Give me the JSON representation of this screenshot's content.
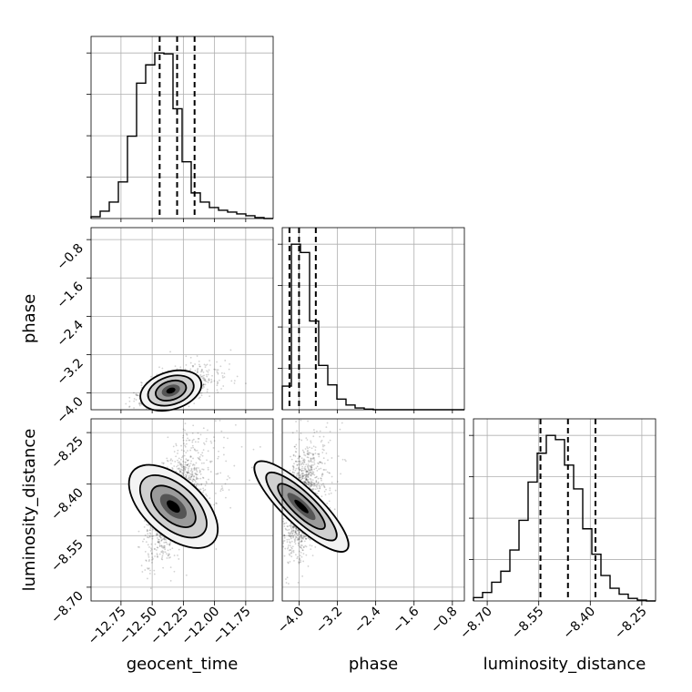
{
  "chart_data": {
    "type": "corner",
    "parameters": [
      "geocent_time",
      "phase",
      "luminosity_distance"
    ],
    "axis_labels": {
      "geocent_time": "geocent_time",
      "phase": "phase",
      "luminosity_distance": "luminosity_distance"
    },
    "ticks": {
      "geocent_time": [
        "−12.75",
        "−12.50",
        "−12.25",
        "−12.00",
        "−11.75"
      ],
      "phase": [
        "−4.0",
        "−3.2",
        "−2.4",
        "−1.6",
        "−0.8"
      ],
      "phase_y": [
        "−0.8",
        "−1.6",
        "−2.4",
        "−3.2",
        "−4.0"
      ],
      "luminosity_distance": [
        "−8.70",
        "−8.55",
        "−8.40",
        "−8.25"
      ],
      "luminosity_distance_y": [
        "−8.25",
        "−8.40",
        "−8.55",
        "−8.70"
      ]
    },
    "tick_values": {
      "geocent_time": [
        -12.75,
        -12.5,
        -12.25,
        -12.0,
        -11.75
      ],
      "phase": [
        -4.0,
        -3.2,
        -2.4,
        -1.6,
        -0.8
      ],
      "luminosity_distance": [
        -8.7,
        -8.55,
        -8.4,
        -8.25
      ]
    },
    "ranges": {
      "geocent_time": [
        -12.99,
        -11.53
      ],
      "phase": [
        -4.35,
        -0.55
      ],
      "luminosity_distance": [
        -8.74,
        -8.21
      ]
    },
    "histograms": {
      "geocent_time": {
        "bins": [
          -12.99,
          -12.917,
          -12.844,
          -12.771,
          -12.698,
          -12.625,
          -12.552,
          -12.479,
          -12.406,
          -12.333,
          -12.26,
          -12.187,
          -12.114,
          -12.041,
          -11.968,
          -11.895,
          -11.822,
          -11.749,
          -11.676,
          -11.603,
          -11.53
        ],
        "counts": [
          2,
          8,
          18,
          40,
          90,
          148,
          168,
          181,
          180,
          120,
          62,
          28,
          18,
          12,
          9,
          7,
          5,
          3,
          1,
          0
        ],
        "quantiles": [
          -12.44,
          -12.3,
          -12.16
        ]
      },
      "phase": {
        "bins": [
          -4.35,
          -4.16,
          -3.97,
          -3.78,
          -3.59,
          -3.4,
          -3.21,
          -3.02,
          -2.83,
          -2.64,
          -2.45,
          -2.26,
          -2.07,
          -1.88,
          -1.69,
          -1.5,
          -1.31,
          -1.12,
          -0.93,
          -0.74,
          -0.55
        ],
        "counts": [
          40,
          280,
          266,
          150,
          75,
          42,
          18,
          8,
          3,
          1,
          0,
          0,
          0,
          0,
          0,
          0,
          0,
          0,
          0,
          0
        ],
        "quantiles": [
          -4.2,
          -4.0,
          -3.65
        ]
      },
      "luminosity_distance": {
        "bins": [
          -8.74,
          -8.7135,
          -8.687,
          -8.6605,
          -8.634,
          -8.6075,
          -8.581,
          -8.5545,
          -8.528,
          -8.5015,
          -8.475,
          -8.4485,
          -8.422,
          -8.3955,
          -8.369,
          -8.3425,
          -8.316,
          -8.2895,
          -8.263,
          -8.2365,
          -8.21
        ],
        "counts": [
          4,
          10,
          22,
          35,
          60,
          95,
          140,
          174,
          195,
          190,
          160,
          132,
          85,
          55,
          30,
          15,
          8,
          3,
          1,
          0
        ],
        "quantiles": [
          -8.545,
          -8.465,
          -8.385
        ]
      }
    },
    "pairs": [
      {
        "x": "geocent_time",
        "y": "phase",
        "center": [
          -12.35,
          -3.95
        ],
        "spread": [
          0.12,
          0.18
        ],
        "corr": 0.55
      },
      {
        "x": "geocent_time",
        "y": "luminosity_distance",
        "center": [
          -12.33,
          -8.465
        ],
        "spread": [
          0.11,
          0.075
        ],
        "corr": 0.6
      },
      {
        "x": "phase",
        "y": "luminosity_distance",
        "center": [
          -3.95,
          -8.465
        ],
        "spread": [
          0.18,
          0.075
        ],
        "corr": 0.35
      }
    ]
  }
}
